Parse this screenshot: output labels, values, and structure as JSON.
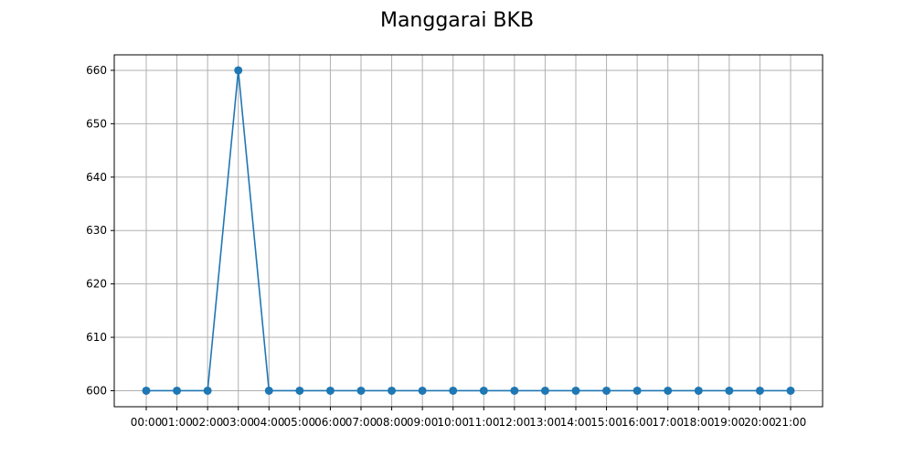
{
  "chart_data": {
    "type": "line",
    "title": "Manggarai BKB",
    "xlabel": "",
    "ylabel": "",
    "categories": [
      "00:00",
      "01:00",
      "02:00",
      "03:00",
      "04:00",
      "05:00",
      "06:00",
      "07:00",
      "08:00",
      "09:00",
      "10:00",
      "11:00",
      "12:00",
      "13:00",
      "14:00",
      "15:00",
      "16:00",
      "17:00",
      "18:00",
      "19:00",
      "20:00",
      "21:00"
    ],
    "series": [
      {
        "values": [
          600,
          600,
          600,
          660,
          600,
          600,
          600,
          600,
          600,
          600,
          600,
          600,
          600,
          600,
          600,
          600,
          600,
          600,
          600,
          600,
          600,
          600
        ],
        "color": "#1f77b4",
        "marker": "circle"
      }
    ],
    "ylim": [
      597,
      662.9
    ],
    "yticks": [
      600,
      610,
      620,
      630,
      640,
      650,
      660
    ],
    "grid": true,
    "legend": "none"
  }
}
